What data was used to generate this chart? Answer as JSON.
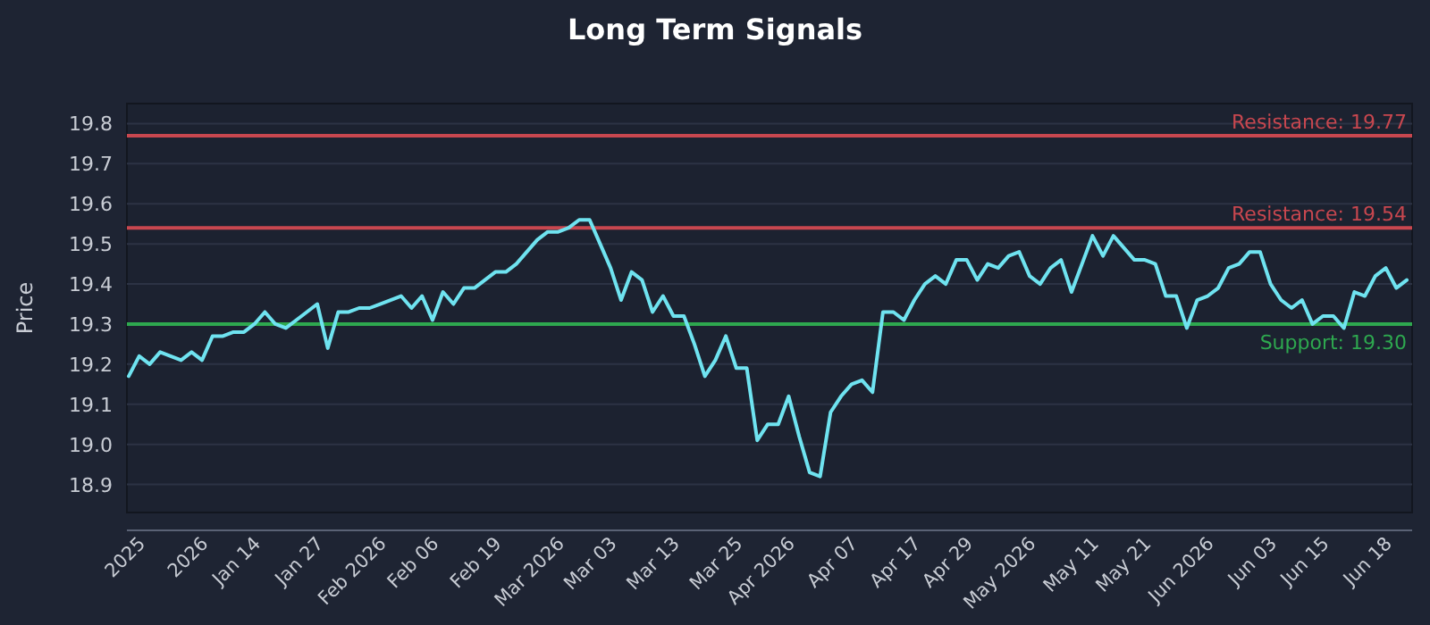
{
  "chart_data": {
    "type": "line",
    "title": "Long Term Signals",
    "ylabel": "Price",
    "categories": [
      null,
      "2025",
      null,
      null,
      null,
      null,
      null,
      "2026",
      null,
      null,
      null,
      null,
      "Jan 14",
      null,
      null,
      null,
      null,
      null,
      "Jan 27",
      null,
      null,
      null,
      null,
      null,
      "Feb 2026",
      null,
      null,
      null,
      null,
      "Feb 06",
      null,
      null,
      null,
      null,
      null,
      "Feb 19",
      null,
      null,
      null,
      null,
      null,
      "Mar 2026",
      null,
      null,
      null,
      null,
      "Mar 03",
      null,
      null,
      null,
      null,
      null,
      "Mar 13",
      null,
      null,
      null,
      null,
      null,
      "Mar 25",
      null,
      null,
      null,
      null,
      "Apr 2026",
      null,
      null,
      null,
      null,
      null,
      "Apr 07",
      null,
      null,
      null,
      null,
      null,
      "Apr 17",
      null,
      null,
      null,
      null,
      "Apr 29",
      null,
      null,
      null,
      null,
      null,
      "May 2026",
      null,
      null,
      null,
      null,
      null,
      "May 11",
      null,
      null,
      null,
      null,
      "May 21",
      null,
      null,
      null,
      null,
      null,
      "Jun 2026",
      null,
      null,
      null,
      null,
      null,
      "Jun 03",
      null,
      null,
      null,
      null,
      "Jun 15",
      null,
      null,
      null,
      null,
      null,
      "Jun 18",
      null,
      null
    ],
    "series": [
      {
        "color": "#6fe3f0",
        "values": [
          19.17,
          19.22,
          19.2,
          19.23,
          19.22,
          19.21,
          19.23,
          19.21,
          19.27,
          19.27,
          19.28,
          19.28,
          19.3,
          19.33,
          19.3,
          19.29,
          19.31,
          19.33,
          19.35,
          19.24,
          19.33,
          19.33,
          19.34,
          19.34,
          19.35,
          19.36,
          19.37,
          19.34,
          19.37,
          19.31,
          19.38,
          19.35,
          19.39,
          19.39,
          19.41,
          19.43,
          19.43,
          19.45,
          19.48,
          19.51,
          19.53,
          19.53,
          19.54,
          19.56,
          19.56,
          19.5,
          19.44,
          19.36,
          19.43,
          19.41,
          19.33,
          19.37,
          19.32,
          19.32,
          19.25,
          19.17,
          19.21,
          19.27,
          19.19,
          19.19,
          19.01,
          19.05,
          19.05,
          19.12,
          19.02,
          18.93,
          18.92,
          19.08,
          19.12,
          19.15,
          19.16,
          19.13,
          19.33,
          19.33,
          19.31,
          19.36,
          19.4,
          19.42,
          19.4,
          19.46,
          19.46,
          19.41,
          19.45,
          19.44,
          19.47,
          19.48,
          19.42,
          19.4,
          19.44,
          19.46,
          19.38,
          19.45,
          19.52,
          19.47,
          19.52,
          19.49,
          19.46,
          19.46,
          19.45,
          19.37,
          19.37,
          19.29,
          19.36,
          19.37,
          19.39,
          19.44,
          19.45,
          19.48,
          19.48,
          19.4,
          19.36,
          19.34,
          19.36,
          19.3,
          19.32,
          19.32,
          19.29,
          19.38,
          19.37,
          19.42,
          19.44,
          19.39,
          19.41
        ]
      }
    ],
    "ylim": [
      18.83,
      19.85
    ],
    "yticks": [
      18.9,
      {
        "value": 19,
        "label": "19.0"
      },
      19.1,
      19.2,
      19.3,
      19.4,
      19.5,
      19.6,
      19.7,
      19.8
    ],
    "grid": "y",
    "ref_lines": [
      {
        "axis": "y",
        "value": 19.77,
        "label": "Resistance: 19.77",
        "color": "#c8474f"
      },
      {
        "axis": "y",
        "value": 19.54,
        "label": "Resistance: 19.54",
        "color": "#c8474f"
      },
      {
        "axis": "y",
        "value": 19.3,
        "label": "Support: 19.30",
        "color": "#2ea84f"
      }
    ]
  }
}
